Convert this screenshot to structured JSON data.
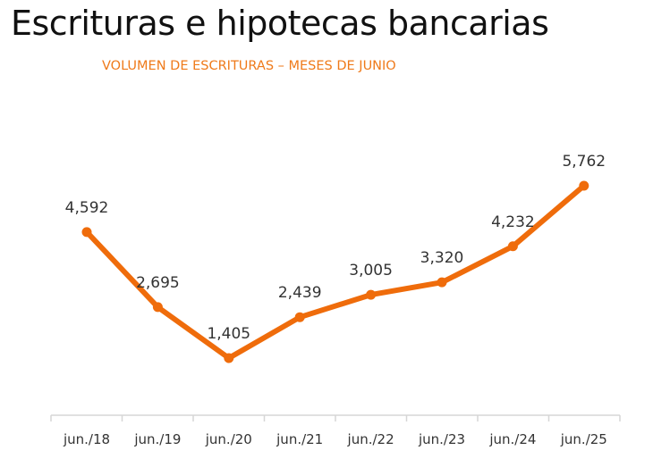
{
  "page": {
    "title": "Escrituras e hipotecas bancarias"
  },
  "chart_data": {
    "type": "line",
    "title": "Escrituras e hipotecas bancarias",
    "subtitle": "VOLUMEN DE ESCRITURAS – MESES DE JUNIO",
    "xlabel": "",
    "ylabel": "",
    "categories": [
      "jun./18",
      "jun./19",
      "jun./20",
      "jun./21",
      "jun./22",
      "jun./23",
      "jun./24",
      "jun./25"
    ],
    "values": [
      4592,
      2695,
      1405,
      2439,
      3005,
      3320,
      4232,
      5762
    ],
    "data_labels": [
      "4,592",
      "2,695",
      "1,405",
      "2,439",
      "3,005",
      "3,320",
      "4,232",
      "5,762"
    ],
    "line_color": "#ef6c0b",
    "axis_color": "#d6d6d6",
    "grid": false,
    "legend": "none"
  }
}
